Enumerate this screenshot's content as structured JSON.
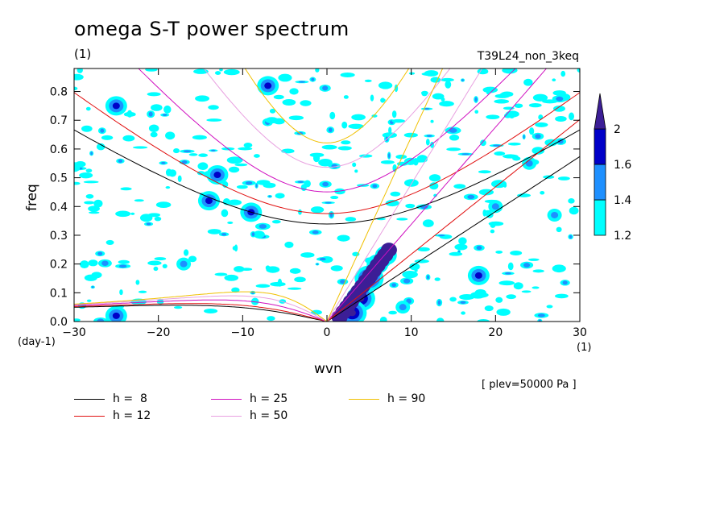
{
  "title": "omega S-T power spectrum",
  "units_label": "(1)",
  "run_label": "T39L24_non_3keq",
  "level_label": "[ plev=50000 Pa ]",
  "chart_data": {
    "type": "heatmap",
    "title": "omega S-T power spectrum",
    "xlabel": "wvn",
    "ylabel": "freq",
    "x_unit": "(1)",
    "y_unit": "(day-1)",
    "xlim": [
      -30,
      30
    ],
    "ylim": [
      0,
      0.88
    ],
    "xticks": [
      -30,
      -20,
      -10,
      0,
      10,
      20,
      30
    ],
    "yticks": [
      0.0,
      0.1,
      0.2,
      0.3,
      0.4,
      0.5,
      0.6,
      0.7,
      0.8
    ],
    "xtick_labels": [
      "−30",
      "−20",
      "−10",
      "0",
      "10",
      "20",
      "30"
    ],
    "ytick_labels": [
      "0.0",
      "0.1",
      "0.2",
      "0.3",
      "0.4",
      "0.5",
      "0.6",
      "0.7",
      "0.8"
    ],
    "colorbar": {
      "levels": [
        1.2,
        1.4,
        1.6,
        2
      ],
      "labels": [
        "1.2",
        "1.4",
        "1.6",
        "2"
      ],
      "colors": [
        "#00ffff",
        "#1e90ff",
        "#0000c8",
        "#3c1e96"
      ]
    },
    "dispersion_curves": [
      {
        "name": "h =  8",
        "h": 8,
        "color": "#000000"
      },
      {
        "name": "h = 12",
        "h": 12,
        "color": "#e01010"
      },
      {
        "name": "h = 25",
        "h": 25,
        "color": "#d010c0"
      },
      {
        "name": "h = 50",
        "h": 50,
        "color": "#e8a0e0"
      },
      {
        "name": "h = 90",
        "h": 90,
        "color": "#f0c000"
      }
    ],
    "spectral_peaks": [
      {
        "x": 5,
        "y": 0.15,
        "level": 2
      },
      {
        "x": 4,
        "y": 0.08,
        "level": 2
      },
      {
        "x": 3,
        "y": 0.03,
        "level": 2
      },
      {
        "x": 6,
        "y": 0.2,
        "level": 1.6
      },
      {
        "x": 7,
        "y": 0.23,
        "level": 1.6
      },
      {
        "x": -25,
        "y": 0.75,
        "level": 1.6
      },
      {
        "x": -14,
        "y": 0.42,
        "level": 1.6
      },
      {
        "x": -9,
        "y": 0.38,
        "level": 1.6
      },
      {
        "x": -7,
        "y": 0.82,
        "level": 1.6
      },
      {
        "x": -13,
        "y": 0.51,
        "level": 1.6
      },
      {
        "x": 18,
        "y": 0.16,
        "level": 1.6
      },
      {
        "x": -25,
        "y": 0.02,
        "level": 1.6
      },
      {
        "x": -17,
        "y": 0.2,
        "level": 1.4
      },
      {
        "x": 20,
        "y": 0.4,
        "level": 1.4
      },
      {
        "x": 9,
        "y": 0.05,
        "level": 1.4
      },
      {
        "x": 27,
        "y": 0.37,
        "level": 1.4
      },
      {
        "x": 24,
        "y": 0.55,
        "level": 1.4
      }
    ],
    "grid": false
  }
}
